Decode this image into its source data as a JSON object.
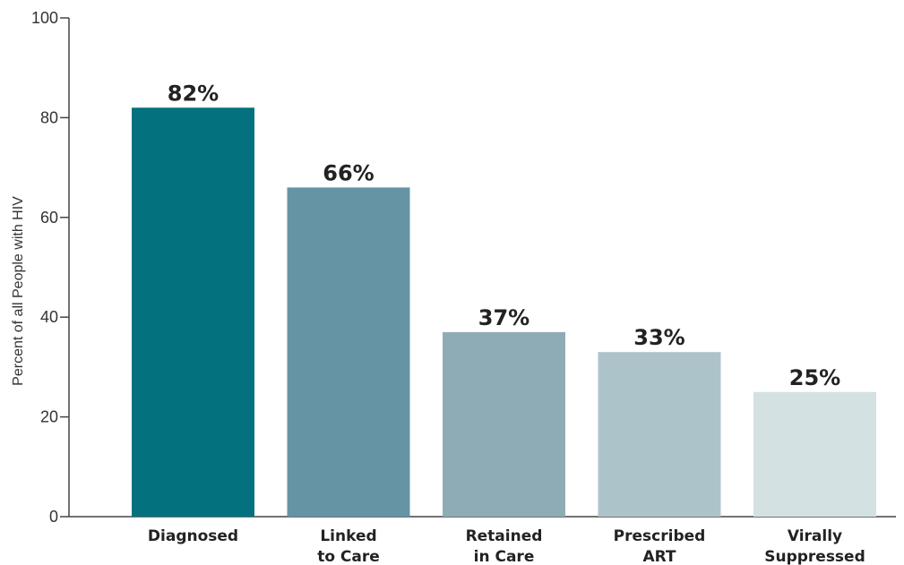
{
  "chart_data": {
    "type": "bar",
    "categories": [
      [
        "Diagnosed"
      ],
      [
        "Linked",
        "to Care"
      ],
      [
        "Retained",
        "in Care"
      ],
      [
        "Prescribed",
        "ART"
      ],
      [
        "Virally",
        "Suppressed"
      ]
    ],
    "values": [
      82,
      66,
      37,
      33,
      25
    ],
    "value_labels": [
      "82%",
      "66%",
      "37%",
      "33%",
      "25%"
    ],
    "bar_colors": [
      "#03717e",
      "#6594a4",
      "#8eacb5",
      "#adc3ca",
      "#d4e1e3"
    ],
    "ylabel": "Percent of all People with HIV",
    "xlabel": "",
    "ylim": [
      0,
      100
    ],
    "yticks": [
      0,
      20,
      40,
      60,
      80,
      100
    ],
    "grid": false
  }
}
